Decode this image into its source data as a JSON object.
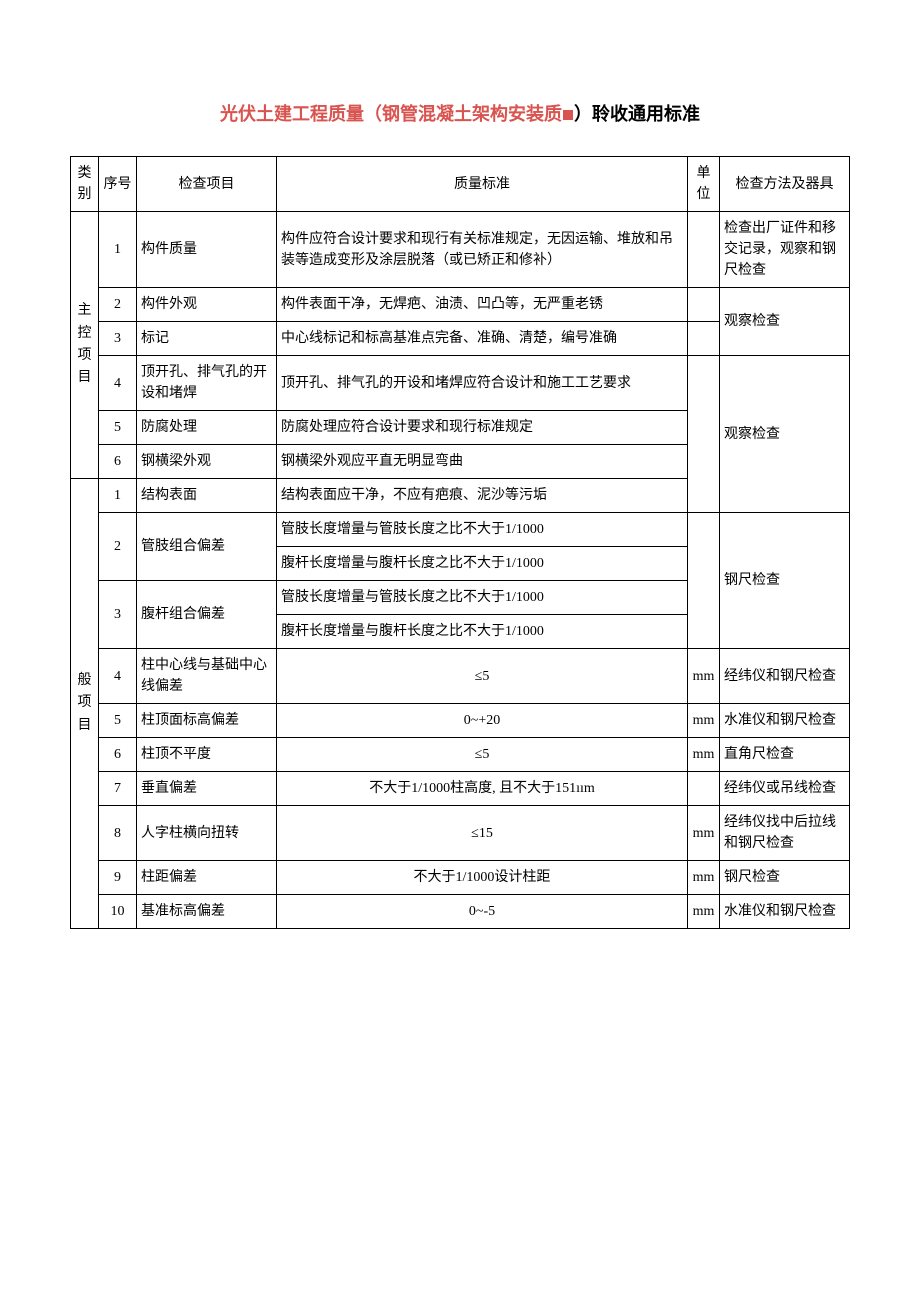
{
  "title": {
    "part1": "光伏土建工程质量（钢管混凝土架构安装质",
    "part2": "）聆收通用标准"
  },
  "headers": {
    "category": "类别",
    "number": "序号",
    "item": "检查项目",
    "standard": "质量标准",
    "unit": "单位",
    "method": "检查方法及器具"
  },
  "cat1": {
    "label": "主控项目",
    "rows": [
      {
        "n": "1",
        "item": "构件质量",
        "std": "构件应符合设计要求和现行有关标准规定，无因运输、堆放和吊装等造成变形及涂层脱落（或已矫正和修补）",
        "unit": "",
        "method": "检查出厂证件和移交记录，观察和钢尺检查"
      },
      {
        "n": "2",
        "item": "构件外观",
        "std": "构件表面干净，无焊疤、油渍、凹凸等，无严重老锈",
        "unit": "",
        "method": "观察检查"
      },
      {
        "n": "3",
        "item": "标记",
        "std": "中心线标记和标高基准点完备、准确、清楚，编号准确",
        "unit": "",
        "method": ""
      },
      {
        "n": "4",
        "item": "顶开孔、排气孔的开设和堵焊",
        "std": "顶开孔、排气孔的开设和堵焊应符合设计和施工工艺要求",
        "unit": "",
        "method": "观察检查"
      },
      {
        "n": "5",
        "item": "防腐处理",
        "std": "防腐处理应符合设计要求和现行标准规定",
        "unit": "",
        "method": ""
      },
      {
        "n": "6",
        "item": "钢横梁外观",
        "std": "钢横梁外观应平直无明显弯曲",
        "unit": "",
        "method": ""
      }
    ]
  },
  "cat2": {
    "label": "般项目",
    "rows": [
      {
        "n": "1",
        "item": "结构表面",
        "std": "结构表面应干净，不应有疤痕、泥沙等污垢",
        "unit": "",
        "method": ""
      },
      {
        "n": "2",
        "item": "管肢组合偏差",
        "std1": "管肢长度增量与管肢长度之比不大于1/1000",
        "std2": "腹杆长度增量与腹杆长度之比不大于1/1000",
        "unit": "",
        "method": "钢尺检查"
      },
      {
        "n": "3",
        "item": "腹杆组合偏差",
        "std1": "管肢长度增量与管肢长度之比不大于1/1000",
        "std2": "腹杆长度增量与腹杆长度之比不大于1/1000",
        "unit": "",
        "method": ""
      },
      {
        "n": "4",
        "item": "柱中心线与基础中心线偏差",
        "std": "≤5",
        "unit": "mm",
        "method": "经纬仪和钢尺检查"
      },
      {
        "n": "5",
        "item": "柱顶面标高偏差",
        "std": "0~+20",
        "unit": "mm",
        "method": "水准仪和钢尺检查"
      },
      {
        "n": "6",
        "item": "柱顶不平度",
        "std": "≤5",
        "unit": "mm",
        "method": "直角尺检查"
      },
      {
        "n": "7",
        "item": "垂直偏差",
        "std": "不大于1/1000柱高度, 且不大于151ıım",
        "unit": "",
        "method": "经纬仪或吊线检查"
      },
      {
        "n": "8",
        "item": "人字柱横向扭转",
        "std": "≤15",
        "unit": "mm",
        "method": "经纬仪找中后拉线和钢尺检查"
      },
      {
        "n": "9",
        "item": "柱距偏差",
        "std": "不大于1/1000设计柱距",
        "unit": "mm",
        "method": "钢尺检查"
      },
      {
        "n": "10",
        "item": "基准标高偏差",
        "std": "0~-5",
        "unit": "mm",
        "method": "水准仪和钢尺检查"
      }
    ]
  }
}
